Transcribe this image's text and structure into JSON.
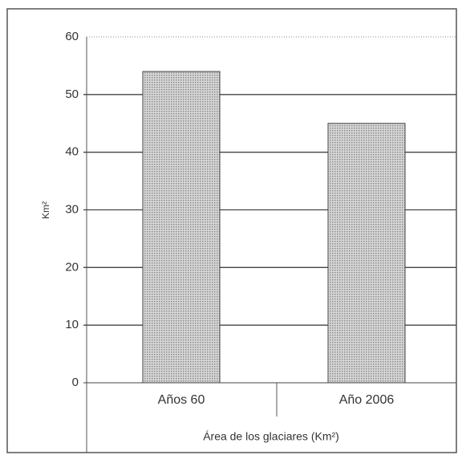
{
  "chart_data": {
    "type": "bar",
    "x_label": "Área de los glaciares (Km²)",
    "y_label": "Km²",
    "categories": [
      "Años 60",
      "Año 2006"
    ],
    "values": [
      54,
      45
    ],
    "color": "#c4c4c4",
    "ylim": [
      0,
      60
    ],
    "yticks": [
      0,
      10,
      20,
      30,
      40,
      50,
      60
    ],
    "grid": true
  }
}
